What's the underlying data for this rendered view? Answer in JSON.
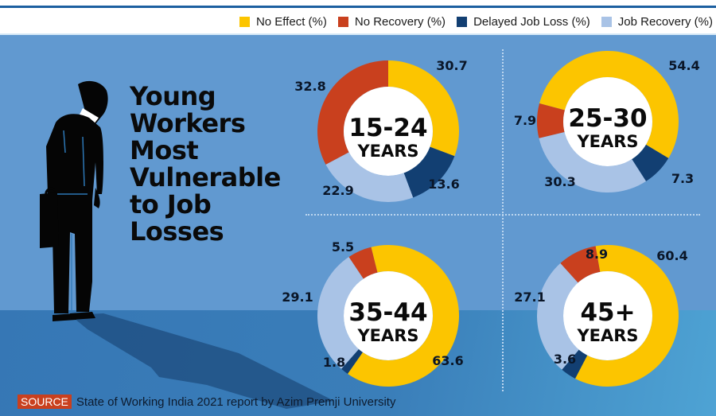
{
  "legend": [
    {
      "label": "No Effect (%)",
      "color": "#fcc500"
    },
    {
      "label": "No Recovery (%)",
      "color": "#c9401e"
    },
    {
      "label": "Delayed Job Loss (%)",
      "color": "#123f72"
    },
    {
      "label": "Job Recovery (%)",
      "color": "#a9c3e6"
    }
  ],
  "title_lines": [
    "Young",
    "Workers",
    "Most",
    "Vulnerable",
    "to Job",
    "Losses"
  ],
  "source": {
    "tag": "SOURCE",
    "text": "State of Working India 2021 report by Azim Premji University"
  },
  "colors": {
    "panel": "#6199d0",
    "no_effect": "#fcc500",
    "no_recovery": "#c9401e",
    "delayed_job_loss": "#123f72",
    "job_recovery": "#a9c3e6"
  },
  "chart_data": [
    {
      "type": "pie",
      "variant": "donut",
      "title": "15-24",
      "subtitle": "YEARS",
      "categories": [
        "No Effect (%)",
        "Delayed Job Loss (%)",
        "Job Recovery (%)",
        "No Recovery (%)"
      ],
      "values": [
        30.7,
        13.6,
        22.9,
        32.8
      ]
    },
    {
      "type": "pie",
      "variant": "donut",
      "title": "25-30",
      "subtitle": "YEARS",
      "categories": [
        "No Effect (%)",
        "Delayed Job Loss (%)",
        "Job Recovery (%)",
        "No Recovery (%)"
      ],
      "values": [
        54.4,
        7.3,
        30.3,
        7.9
      ]
    },
    {
      "type": "pie",
      "variant": "donut",
      "title": "35-44",
      "subtitle": "YEARS",
      "categories": [
        "No Effect (%)",
        "Delayed Job Loss (%)",
        "Job Recovery (%)",
        "No Recovery (%)"
      ],
      "values": [
        63.6,
        1.8,
        29.1,
        5.5
      ]
    },
    {
      "type": "pie",
      "variant": "donut",
      "title": "45+",
      "subtitle": "YEARS",
      "categories": [
        "No Effect (%)",
        "Delayed Job Loss (%)",
        "Job Recovery (%)",
        "No Recovery (%)"
      ],
      "values": [
        60.4,
        3.6,
        27.1,
        8.9
      ]
    }
  ]
}
